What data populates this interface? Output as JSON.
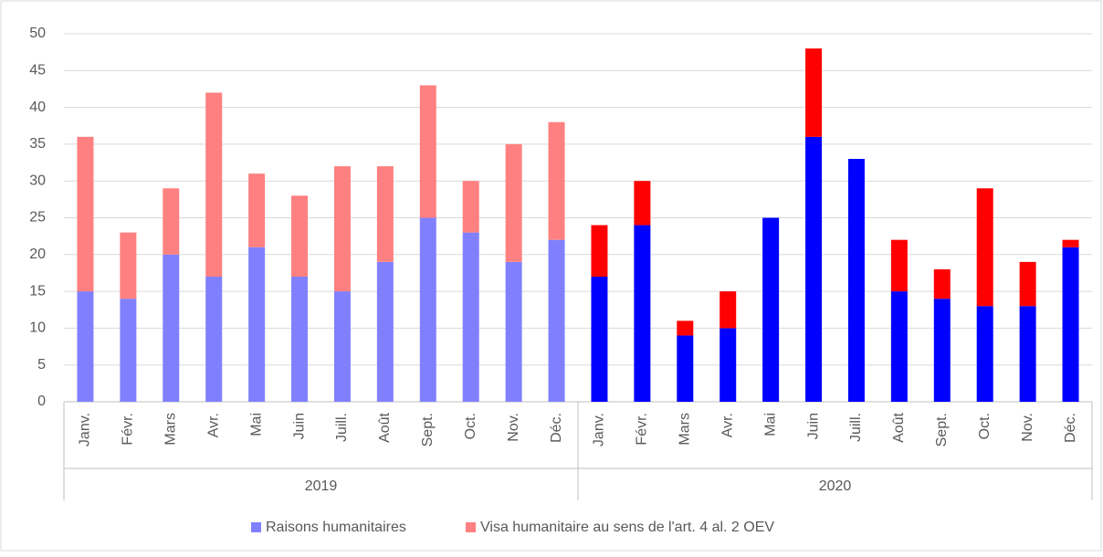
{
  "chart_data": {
    "type": "stacked_bar",
    "categories": [
      "Janv.",
      "Févr.",
      "Mars",
      "Avr.",
      "Mai",
      "Juin",
      "Juill.",
      "Août",
      "Sept.",
      "Oct.",
      "Nov.",
      "Déc.",
      "Janv.",
      "Févr.",
      "Mars",
      "Avr.",
      "Mai",
      "Juin",
      "Juill.",
      "Août",
      "Sept.",
      "Oct.",
      "Nov.",
      "Déc."
    ],
    "groups": [
      "2019",
      "2020"
    ],
    "series": [
      {
        "name": "Raisons humanitaires",
        "color": "#8080ff",
        "group_colors": [
          "#8080ff",
          "#0000ff"
        ],
        "values": [
          15,
          14,
          20,
          17,
          21,
          17,
          15,
          19,
          25,
          23,
          19,
          22,
          17,
          24,
          9,
          10,
          25,
          36,
          33,
          15,
          14,
          13,
          13,
          21
        ]
      },
      {
        "name": "Visa humanitaire au sens de l'art. 4 al. 2 OEV",
        "color": "#ff8080",
        "group_colors": [
          "#ff8080",
          "#ff0000"
        ],
        "values": [
          21,
          9,
          9,
          25,
          10,
          11,
          17,
          13,
          18,
          7,
          16,
          16,
          7,
          6,
          2,
          5,
          0,
          12,
          0,
          7,
          4,
          16,
          6,
          1
        ]
      }
    ],
    "ylim": [
      0,
      50
    ],
    "yticks": [
      0,
      5,
      10,
      15,
      20,
      25,
      30,
      35,
      40,
      45,
      50
    ],
    "grid": true,
    "legend": "bottom"
  }
}
